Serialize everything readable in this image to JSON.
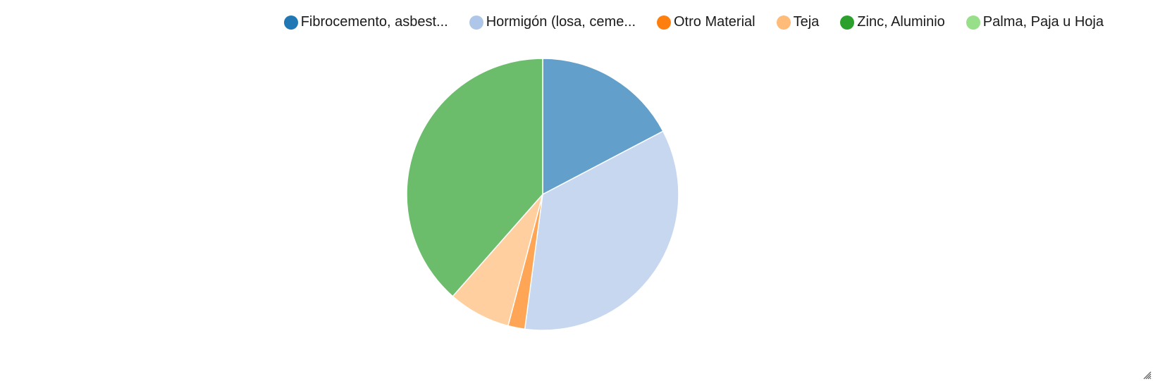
{
  "chart_data": {
    "type": "pie",
    "slices": [
      {
        "label": "Fibrocemento, asbest...",
        "value": 17.3,
        "color": "#1f77b4",
        "fill": "#62a0cb"
      },
      {
        "label": "Hormigón (losa, ceme...",
        "value": 34.8,
        "color": "#aec7e8",
        "fill": "#c6d7ef"
      },
      {
        "label": "Otro Material",
        "value": 2.0,
        "color": "#ff7f0e",
        "fill": "#ffa556"
      },
      {
        "label": "Teja",
        "value": 7.4,
        "color": "#ffbb78",
        "fill": "#ffcfa0"
      },
      {
        "label": "Zinc, Aluminio",
        "value": 38.5,
        "color": "#2ca02c",
        "fill": "#6bbd6b"
      },
      {
        "label": "Palma, Paja u Hoja",
        "value": 0.0,
        "color": "#98df8a",
        "fill": "#b7e9ad"
      }
    ],
    "legend_position": "top-right",
    "start_angle": "12 o'clock",
    "direction": "clockwise"
  }
}
